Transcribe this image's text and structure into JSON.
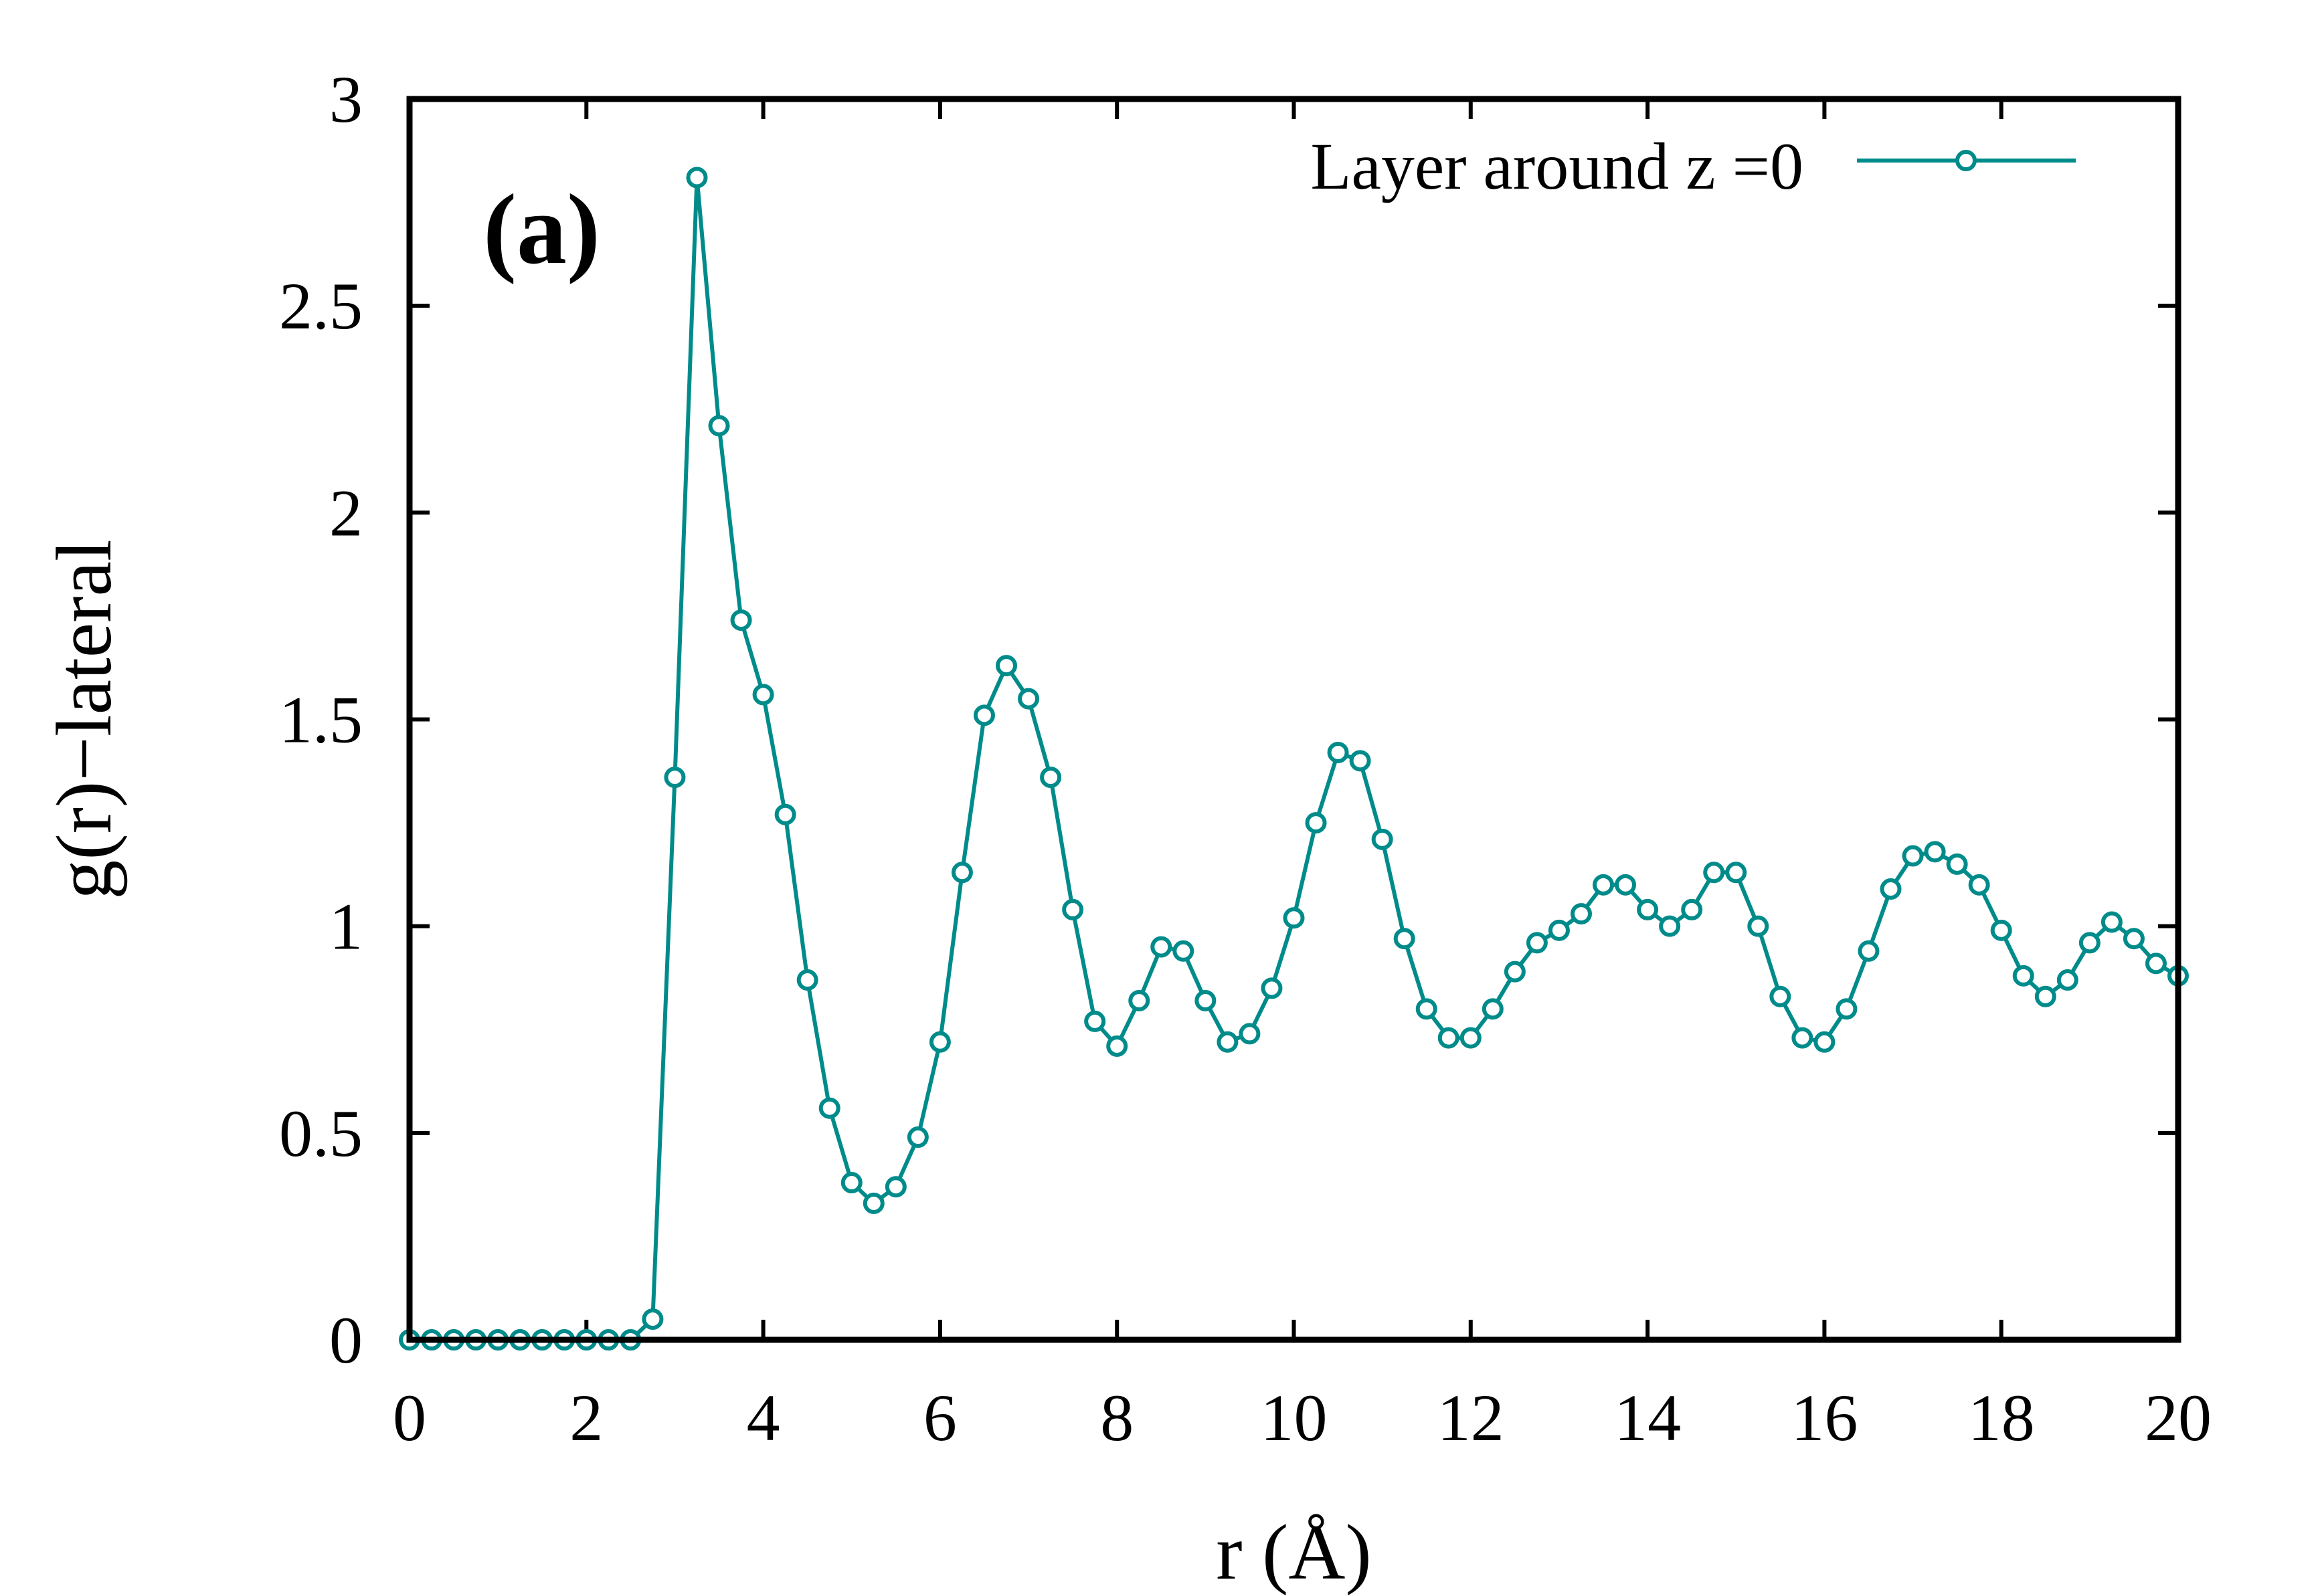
{
  "chart_data": {
    "type": "line",
    "panel_label": "(a)",
    "xlabel": "r (Å)",
    "ylabel": "g(r)−lateral",
    "xlim": [
      0,
      20
    ],
    "ylim": [
      0,
      3
    ],
    "x_ticks": [
      0,
      2,
      4,
      6,
      8,
      10,
      12,
      14,
      16,
      18,
      20
    ],
    "x_tick_labels": [
      "0",
      "2",
      "4",
      "6",
      "8",
      "10",
      "12",
      "14",
      "16",
      "18",
      "20"
    ],
    "y_ticks": [
      0,
      0.5,
      1,
      1.5,
      2,
      2.5,
      3
    ],
    "y_tick_labels": [
      "0",
      "0.5",
      "1",
      "1.5",
      "2",
      "2.5",
      "3"
    ],
    "grid": false,
    "legend_position": "top-right",
    "colors": {
      "series": "#008b8b"
    },
    "series": [
      {
        "name": "Layer around z =0",
        "marker": "open-circle",
        "x": [
          0.0,
          0.25,
          0.5,
          0.75,
          1.0,
          1.25,
          1.5,
          1.75,
          2.0,
          2.25,
          2.5,
          2.75,
          3.0,
          3.25,
          3.5,
          3.75,
          4.0,
          4.25,
          4.5,
          4.75,
          5.0,
          5.25,
          5.5,
          5.75,
          6.0,
          6.25,
          6.5,
          6.75,
          7.0,
          7.25,
          7.5,
          7.75,
          8.0,
          8.25,
          8.5,
          8.75,
          9.0,
          9.25,
          9.5,
          9.75,
          10.0,
          10.25,
          10.5,
          10.75,
          11.0,
          11.25,
          11.5,
          11.75,
          12.0,
          12.25,
          12.5,
          12.75,
          13.0,
          13.25,
          13.5,
          13.75,
          14.0,
          14.25,
          14.5,
          14.75,
          15.0,
          15.25,
          15.5,
          15.75,
          16.0,
          16.25,
          16.5,
          16.75,
          17.0,
          17.25,
          17.5,
          17.75,
          18.0,
          18.25,
          18.5,
          18.75,
          19.0,
          19.25,
          19.5,
          19.75,
          20.0
        ],
        "y": [
          0,
          0,
          0,
          0,
          0,
          0,
          0,
          0,
          0,
          0,
          0,
          0.05,
          1.36,
          2.81,
          2.21,
          1.74,
          1.56,
          1.27,
          0.87,
          0.56,
          0.38,
          0.33,
          0.37,
          0.49,
          0.72,
          1.13,
          1.51,
          1.63,
          1.55,
          1.36,
          1.04,
          0.77,
          0.71,
          0.82,
          0.95,
          0.94,
          0.82,
          0.72,
          0.74,
          0.85,
          1.02,
          1.25,
          1.42,
          1.4,
          1.21,
          0.97,
          0.8,
          0.73,
          0.73,
          0.8,
          0.89,
          0.96,
          0.99,
          1.03,
          1.1,
          1.1,
          1.04,
          1.0,
          1.04,
          1.13,
          1.13,
          1.0,
          0.83,
          0.73,
          0.72,
          0.8,
          0.94,
          1.09,
          1.17,
          1.18,
          1.15,
          1.1,
          0.99,
          0.88,
          0.83,
          0.87,
          0.96,
          1.01,
          0.97,
          0.91,
          0.88
        ]
      }
    ]
  }
}
